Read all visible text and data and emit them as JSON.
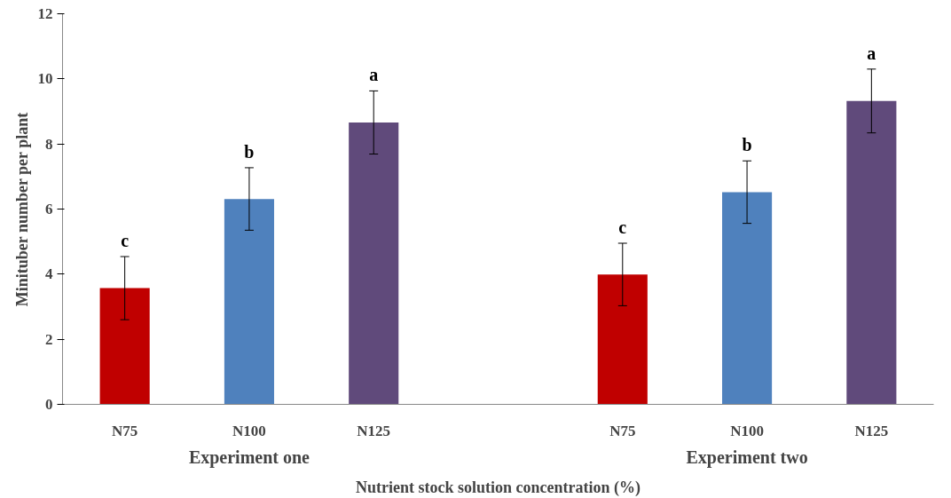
{
  "chart_data": {
    "type": "bar",
    "xlabel": "Nutrient stock solution concentration (%)",
    "ylabel": "Minituber number per plant",
    "categories": [
      "N75",
      "N100",
      "N125",
      null,
      "N75",
      "N100",
      "N125"
    ],
    "values": [
      3.57,
      6.31,
      8.66,
      null,
      3.99,
      6.52,
      9.32
    ],
    "colors": [
      "#c00000",
      "#4f81bd",
      "#604a7b",
      null,
      "#c00000",
      "#4f81bd",
      "#604a7b"
    ],
    "errors": [
      0.97,
      0.96,
      0.97,
      null,
      0.96,
      0.96,
      0.98
    ],
    "value_labels": [
      "c",
      "b",
      "a",
      null,
      "c",
      "b",
      "a"
    ],
    "annotations": [
      "Experiment one",
      "Experiment two"
    ],
    "ylim": [
      0,
      12
    ],
    "yticks": [
      0,
      2,
      4,
      6,
      8,
      10,
      12
    ],
    "grid": false
  }
}
